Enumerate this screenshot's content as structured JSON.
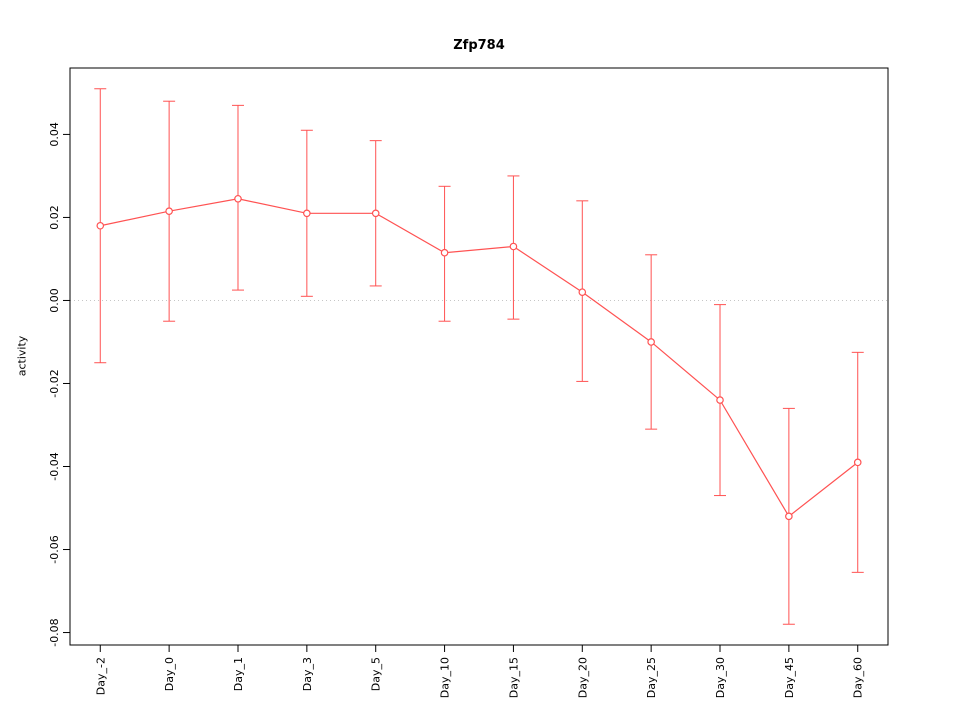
{
  "chart_data": {
    "type": "line",
    "title": "Zfp784",
    "xlabel": "",
    "ylabel": "activity",
    "categories": [
      "Day_-2",
      "Day_0",
      "Day_1",
      "Day_3",
      "Day_5",
      "Day_10",
      "Day_15",
      "Day_20",
      "Day_25",
      "Day_30",
      "Day_45",
      "Day_60"
    ],
    "series": [
      {
        "name": "activity",
        "values": [
          0.018,
          0.0215,
          0.0245,
          0.021,
          0.021,
          0.0115,
          0.013,
          0.002,
          -0.01,
          -0.024,
          -0.052,
          -0.039
        ],
        "error_low": [
          -0.015,
          -0.005,
          0.0025,
          0.001,
          0.0035,
          -0.005,
          -0.0045,
          -0.0195,
          -0.031,
          -0.047,
          -0.078,
          -0.0655
        ],
        "error_high": [
          0.051,
          0.048,
          0.047,
          0.041,
          0.0385,
          0.0275,
          0.03,
          0.024,
          0.011,
          -0.001,
          -0.026,
          -0.0125
        ]
      }
    ],
    "ylim": [
      -0.083,
      0.056
    ],
    "yticks": [
      -0.08,
      -0.06,
      -0.04,
      -0.02,
      0.0,
      0.02,
      0.04
    ],
    "reference_line": 0,
    "grid": false,
    "legend": false,
    "colors": {
      "series": "#ff5252",
      "reference_line": "#c6c6c6",
      "axis": "#000000",
      "point_fill": "#ffffff",
      "background": "#ffffff"
    },
    "marker": "open-circle",
    "error_bars": true
  }
}
